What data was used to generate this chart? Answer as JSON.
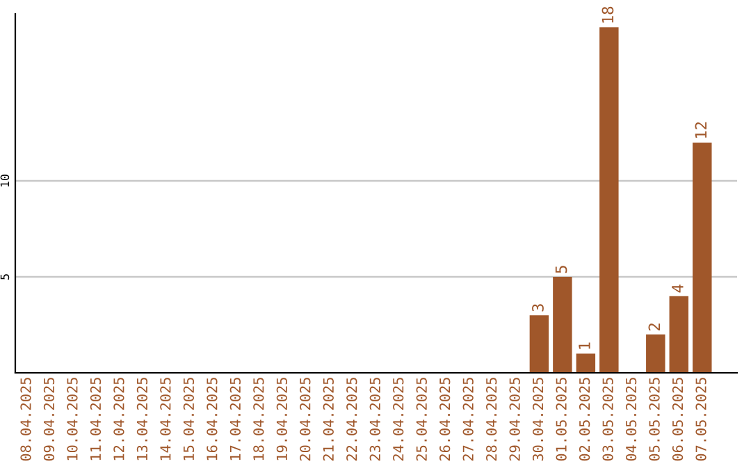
{
  "chart_data": {
    "type": "bar",
    "categories": [
      "08.04.2025",
      "09.04.2025",
      "10.04.2025",
      "11.04.2025",
      "12.04.2025",
      "13.04.2025",
      "14.04.2025",
      "15.04.2025",
      "16.04.2025",
      "17.04.2025",
      "18.04.2025",
      "19.04.2025",
      "20.04.2025",
      "21.04.2025",
      "22.04.2025",
      "23.04.2025",
      "24.04.2025",
      "25.04.2025",
      "26.04.2025",
      "27.04.2025",
      "28.04.2025",
      "29.04.2025",
      "30.04.2025",
      "01.05.2025",
      "02.05.2025",
      "03.05.2025",
      "04.05.2025",
      "05.05.2025",
      "06.05.2025",
      "07.05.2025"
    ],
    "values": [
      0,
      0,
      0,
      0,
      0,
      0,
      0,
      0,
      0,
      0,
      0,
      0,
      0,
      0,
      0,
      0,
      0,
      0,
      0,
      0,
      0,
      0,
      3,
      5,
      1,
      18,
      0,
      2,
      4,
      12
    ],
    "value_labels": [
      null,
      null,
      null,
      null,
      null,
      null,
      null,
      null,
      null,
      null,
      null,
      null,
      null,
      null,
      null,
      null,
      null,
      null,
      null,
      null,
      null,
      null,
      "3",
      "5",
      "1",
      "18",
      null,
      "2",
      "4",
      "12"
    ],
    "color": "#a0572a",
    "ylim": [
      0,
      18.7
    ],
    "yticks": [
      5,
      10
    ],
    "grid": "y"
  }
}
